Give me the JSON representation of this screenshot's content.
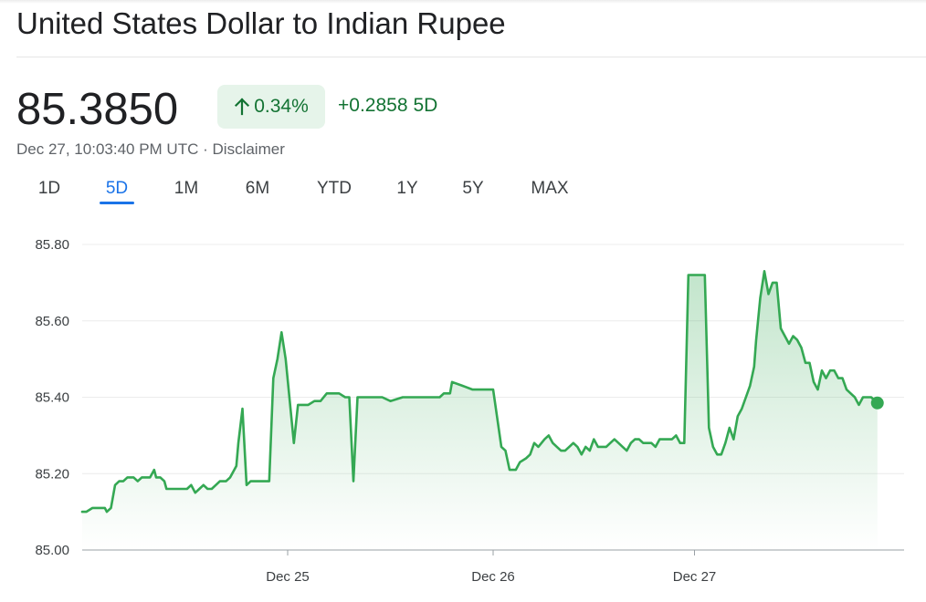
{
  "header": {
    "title": "United States Dollar to Indian Rupee",
    "price": "85.3850",
    "change_pct": "0.34%",
    "change_abs": "+0.2858",
    "change_period": "5D",
    "timestamp": "Dec 27, 10:03:40 PM UTC",
    "separator": "·",
    "disclaimer": "Disclaimer",
    "up_arrow_icon": "arrow-up-icon"
  },
  "tabs": [
    {
      "label": "1D",
      "active": false
    },
    {
      "label": "5D",
      "active": true
    },
    {
      "label": "1M",
      "active": false
    },
    {
      "label": "6M",
      "active": false
    },
    {
      "label": "YTD",
      "active": false
    },
    {
      "label": "1Y",
      "active": false
    },
    {
      "label": "5Y",
      "active": false
    },
    {
      "label": "MAX",
      "active": false
    }
  ],
  "colors": {
    "line": "#34a853",
    "positive_text": "#137333",
    "positive_bg": "#e6f4ea",
    "tab_active": "#1a73e8"
  },
  "chart_data": {
    "type": "area",
    "ylim": [
      85.0,
      85.8
    ],
    "yticks": [
      "85.80",
      "85.60",
      "85.40",
      "85.20",
      "85.00"
    ],
    "ytick_values": [
      85.8,
      85.6,
      85.4,
      85.2,
      85.0
    ],
    "xlim": [
      0,
      4
    ],
    "xticks": [
      {
        "label": "Dec 25",
        "x": 1.0
      },
      {
        "label": "Dec 26",
        "x": 2.0
      },
      {
        "label": "Dec 27",
        "x": 2.98
      }
    ],
    "grid": true,
    "series": [
      {
        "last_point_marker": true,
        "points": [
          [
            0.0,
            85.1
          ],
          [
            0.02,
            85.1
          ],
          [
            0.05,
            85.11
          ],
          [
            0.08,
            85.11
          ],
          [
            0.11,
            85.11
          ],
          [
            0.12,
            85.1
          ],
          [
            0.14,
            85.11
          ],
          [
            0.16,
            85.17
          ],
          [
            0.18,
            85.18
          ],
          [
            0.2,
            85.18
          ],
          [
            0.22,
            85.19
          ],
          [
            0.25,
            85.19
          ],
          [
            0.27,
            85.18
          ],
          [
            0.29,
            85.19
          ],
          [
            0.31,
            85.19
          ],
          [
            0.33,
            85.19
          ],
          [
            0.35,
            85.21
          ],
          [
            0.36,
            85.19
          ],
          [
            0.38,
            85.19
          ],
          [
            0.4,
            85.18
          ],
          [
            0.41,
            85.16
          ],
          [
            0.43,
            85.16
          ],
          [
            0.45,
            85.16
          ],
          [
            0.47,
            85.16
          ],
          [
            0.49,
            85.16
          ],
          [
            0.51,
            85.16
          ],
          [
            0.53,
            85.17
          ],
          [
            0.55,
            85.15
          ],
          [
            0.57,
            85.16
          ],
          [
            0.59,
            85.17
          ],
          [
            0.61,
            85.16
          ],
          [
            0.63,
            85.16
          ],
          [
            0.65,
            85.17
          ],
          [
            0.67,
            85.18
          ],
          [
            0.7,
            85.18
          ],
          [
            0.72,
            85.19
          ],
          [
            0.75,
            85.22
          ],
          [
            0.76,
            85.28
          ],
          [
            0.78,
            85.37
          ],
          [
            0.8,
            85.17
          ],
          [
            0.82,
            85.18
          ],
          [
            0.87,
            85.18
          ],
          [
            0.89,
            85.18
          ],
          [
            0.91,
            85.18
          ],
          [
            0.93,
            85.45
          ],
          [
            0.95,
            85.5
          ],
          [
            0.97,
            85.57
          ],
          [
            0.99,
            85.5
          ],
          [
            1.03,
            85.28
          ],
          [
            1.05,
            85.38
          ],
          [
            1.07,
            85.38
          ],
          [
            1.1,
            85.38
          ],
          [
            1.13,
            85.39
          ],
          [
            1.16,
            85.39
          ],
          [
            1.19,
            85.41
          ],
          [
            1.22,
            85.41
          ],
          [
            1.25,
            85.41
          ],
          [
            1.28,
            85.4
          ],
          [
            1.3,
            85.4
          ],
          [
            1.32,
            85.18
          ],
          [
            1.34,
            85.4
          ],
          [
            1.37,
            85.4
          ],
          [
            1.46,
            85.4
          ],
          [
            1.5,
            85.39
          ],
          [
            1.56,
            85.4
          ],
          [
            1.66,
            85.4
          ],
          [
            1.74,
            85.4
          ],
          [
            1.76,
            85.41
          ],
          [
            1.79,
            85.41
          ],
          [
            1.8,
            85.44
          ],
          [
            1.85,
            85.43
          ],
          [
            1.9,
            85.42
          ],
          [
            1.96,
            85.42
          ],
          [
            2.0,
            85.42
          ],
          [
            2.04,
            85.27
          ],
          [
            2.06,
            85.26
          ],
          [
            2.08,
            85.21
          ],
          [
            2.11,
            85.21
          ],
          [
            2.13,
            85.23
          ],
          [
            2.16,
            85.24
          ],
          [
            2.18,
            85.25
          ],
          [
            2.2,
            85.28
          ],
          [
            2.22,
            85.27
          ],
          [
            2.25,
            85.29
          ],
          [
            2.27,
            85.3
          ],
          [
            2.29,
            85.28
          ],
          [
            2.31,
            85.27
          ],
          [
            2.33,
            85.26
          ],
          [
            2.35,
            85.26
          ],
          [
            2.37,
            85.27
          ],
          [
            2.39,
            85.28
          ],
          [
            2.41,
            85.27
          ],
          [
            2.43,
            85.25
          ],
          [
            2.45,
            85.27
          ],
          [
            2.47,
            85.26
          ],
          [
            2.49,
            85.29
          ],
          [
            2.51,
            85.27
          ],
          [
            2.53,
            85.27
          ],
          [
            2.55,
            85.27
          ],
          [
            2.57,
            85.28
          ],
          [
            2.59,
            85.29
          ],
          [
            2.61,
            85.28
          ],
          [
            2.63,
            85.27
          ],
          [
            2.65,
            85.26
          ],
          [
            2.67,
            85.28
          ],
          [
            2.69,
            85.29
          ],
          [
            2.71,
            85.29
          ],
          [
            2.73,
            85.28
          ],
          [
            2.75,
            85.28
          ],
          [
            2.77,
            85.28
          ],
          [
            2.79,
            85.27
          ],
          [
            2.81,
            85.29
          ],
          [
            2.83,
            85.29
          ],
          [
            2.85,
            85.29
          ],
          [
            2.87,
            85.29
          ],
          [
            2.89,
            85.3
          ],
          [
            2.91,
            85.28
          ],
          [
            2.93,
            85.28
          ],
          [
            2.95,
            85.72
          ],
          [
            2.97,
            85.72
          ],
          [
            3.0,
            85.72
          ],
          [
            3.03,
            85.72
          ],
          [
            3.05,
            85.32
          ],
          [
            3.07,
            85.27
          ],
          [
            3.09,
            85.25
          ],
          [
            3.11,
            85.25
          ],
          [
            3.13,
            85.28
          ],
          [
            3.15,
            85.32
          ],
          [
            3.17,
            85.29
          ],
          [
            3.19,
            85.35
          ],
          [
            3.21,
            85.37
          ],
          [
            3.23,
            85.4
          ],
          [
            3.25,
            85.43
          ],
          [
            3.27,
            85.48
          ],
          [
            3.28,
            85.55
          ],
          [
            3.3,
            85.66
          ],
          [
            3.32,
            85.73
          ],
          [
            3.34,
            85.67
          ],
          [
            3.36,
            85.7
          ],
          [
            3.38,
            85.7
          ],
          [
            3.4,
            85.58
          ],
          [
            3.42,
            85.56
          ],
          [
            3.44,
            85.54
          ],
          [
            3.46,
            85.56
          ],
          [
            3.48,
            85.55
          ],
          [
            3.5,
            85.53
          ],
          [
            3.52,
            85.49
          ],
          [
            3.54,
            85.49
          ],
          [
            3.56,
            85.44
          ],
          [
            3.58,
            85.42
          ],
          [
            3.6,
            85.47
          ],
          [
            3.62,
            85.45
          ],
          [
            3.64,
            85.47
          ],
          [
            3.66,
            85.47
          ],
          [
            3.68,
            85.45
          ],
          [
            3.7,
            85.45
          ],
          [
            3.72,
            85.42
          ],
          [
            3.74,
            85.41
          ],
          [
            3.76,
            85.4
          ],
          [
            3.78,
            85.38
          ],
          [
            3.8,
            85.4
          ],
          [
            3.82,
            85.4
          ],
          [
            3.84,
            85.4
          ],
          [
            3.86,
            85.39
          ],
          [
            3.87,
            85.385
          ]
        ]
      }
    ]
  }
}
